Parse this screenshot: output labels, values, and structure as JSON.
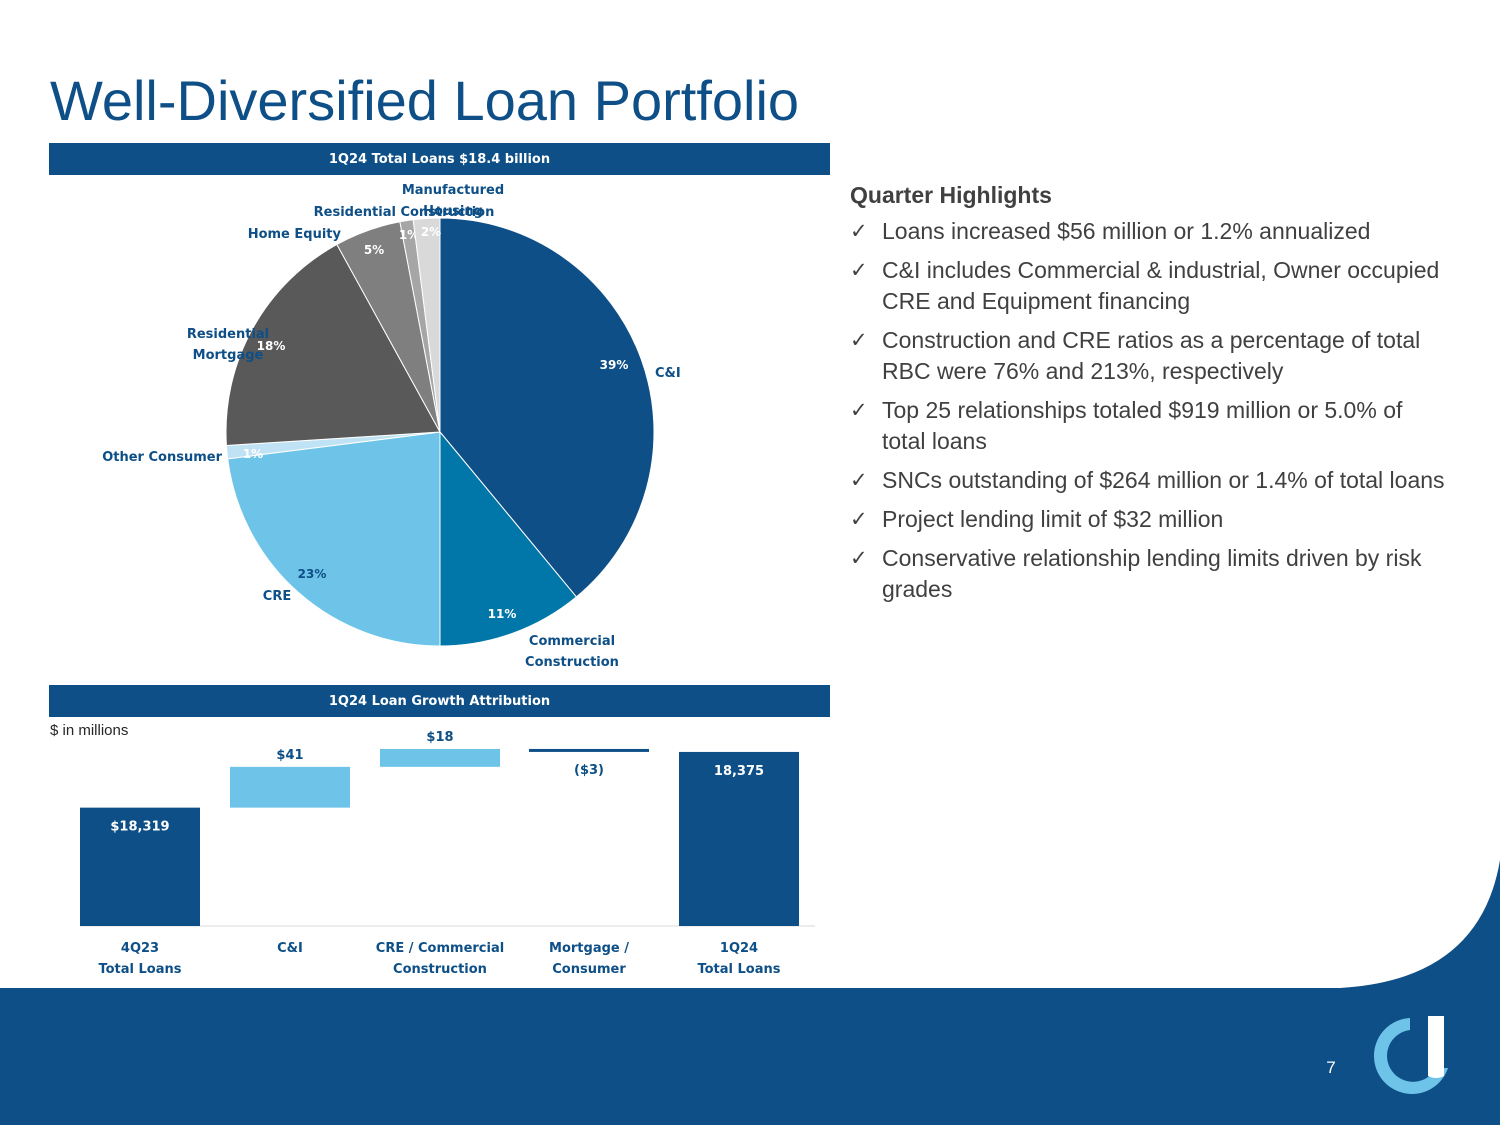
{
  "title": "Well-Diversified Loan Portfolio",
  "pie_banner": "1Q24 Total Loans $18.4 billion",
  "bar_banner": "1Q24 Loan Growth Attribution",
  "bar_units": "$ in millions",
  "highlights": {
    "title": "Quarter Highlights",
    "items": [
      "Loans increased $56 million or 1.2% annualized",
      "C&I includes Commercial & industrial, Owner occupied CRE and Equipment financing",
      "Construction and CRE ratios as a percentage of total RBC were 76% and 213%, respectively",
      "Top 25 relationships totaled $919 million or 5.0% of total loans",
      "SNCs outstanding of $264 million or 1.4% of total loans",
      "Project lending limit of $32 million",
      "Conservative relationship lending limits driven by risk grades"
    ]
  },
  "page_number": "7",
  "colors": {
    "navy": "#0d4f86",
    "teal": "#0077a8",
    "light_blue": "#6ec4e8",
    "pale_blue": "#bfe3f4",
    "dark_gray": "#595959",
    "gray": "#7f7f7f",
    "light_gray": "#a6a6a6",
    "pale_gray": "#d9d9d9"
  },
  "chart_data": [
    {
      "type": "pie",
      "title": "1Q24 Total Loans $18.4 billion",
      "slices": [
        {
          "label": "C&I",
          "value": 39,
          "value_label": "39%",
          "color": "#0d4f86"
        },
        {
          "label": "Commercial Construction",
          "value": 11,
          "value_label": "11%",
          "color": "#0077a8"
        },
        {
          "label": "CRE",
          "value": 23,
          "value_label": "23%",
          "color": "#6ec4e8"
        },
        {
          "label": "Other Consumer",
          "value": 1,
          "value_label": "1%",
          "color": "#bfe3f4"
        },
        {
          "label": "Residential Mortgage",
          "value": 18,
          "value_label": "18%",
          "color": "#595959"
        },
        {
          "label": "Home Equity",
          "value": 5,
          "value_label": "5%",
          "color": "#7f7f7f"
        },
        {
          "label": "Residential Construction",
          "value": 1,
          "value_label": "1%",
          "color": "#a6a6a6"
        },
        {
          "label": "Manufactured Housing",
          "value": 2,
          "value_label": "2%",
          "color": "#d9d9d9"
        }
      ]
    },
    {
      "type": "bar",
      "subtype": "waterfall",
      "title": "1Q24 Loan Growth Attribution",
      "ylabel": "$ in millions",
      "categories": [
        [
          "4Q23",
          "Total Loans"
        ],
        [
          "C&I"
        ],
        [
          "CRE / Commercial",
          "Construction"
        ],
        [
          "Mortgage /",
          "Consumer"
        ],
        [
          "1Q24",
          "Total Loans"
        ]
      ],
      "values": [
        18319,
        41,
        18,
        -3,
        18375
      ],
      "value_labels": [
        "$18,319",
        "$41",
        "$18",
        "($3)",
        "18,375"
      ],
      "kinds": [
        "total",
        "delta",
        "delta",
        "delta",
        "total"
      ],
      "colors": [
        "#0d4f86",
        "#6ec4e8",
        "#6ec4e8",
        "#0d4f86",
        "#0d4f86"
      ],
      "axis_break": true,
      "broken_axis_base": 18200
    }
  ]
}
